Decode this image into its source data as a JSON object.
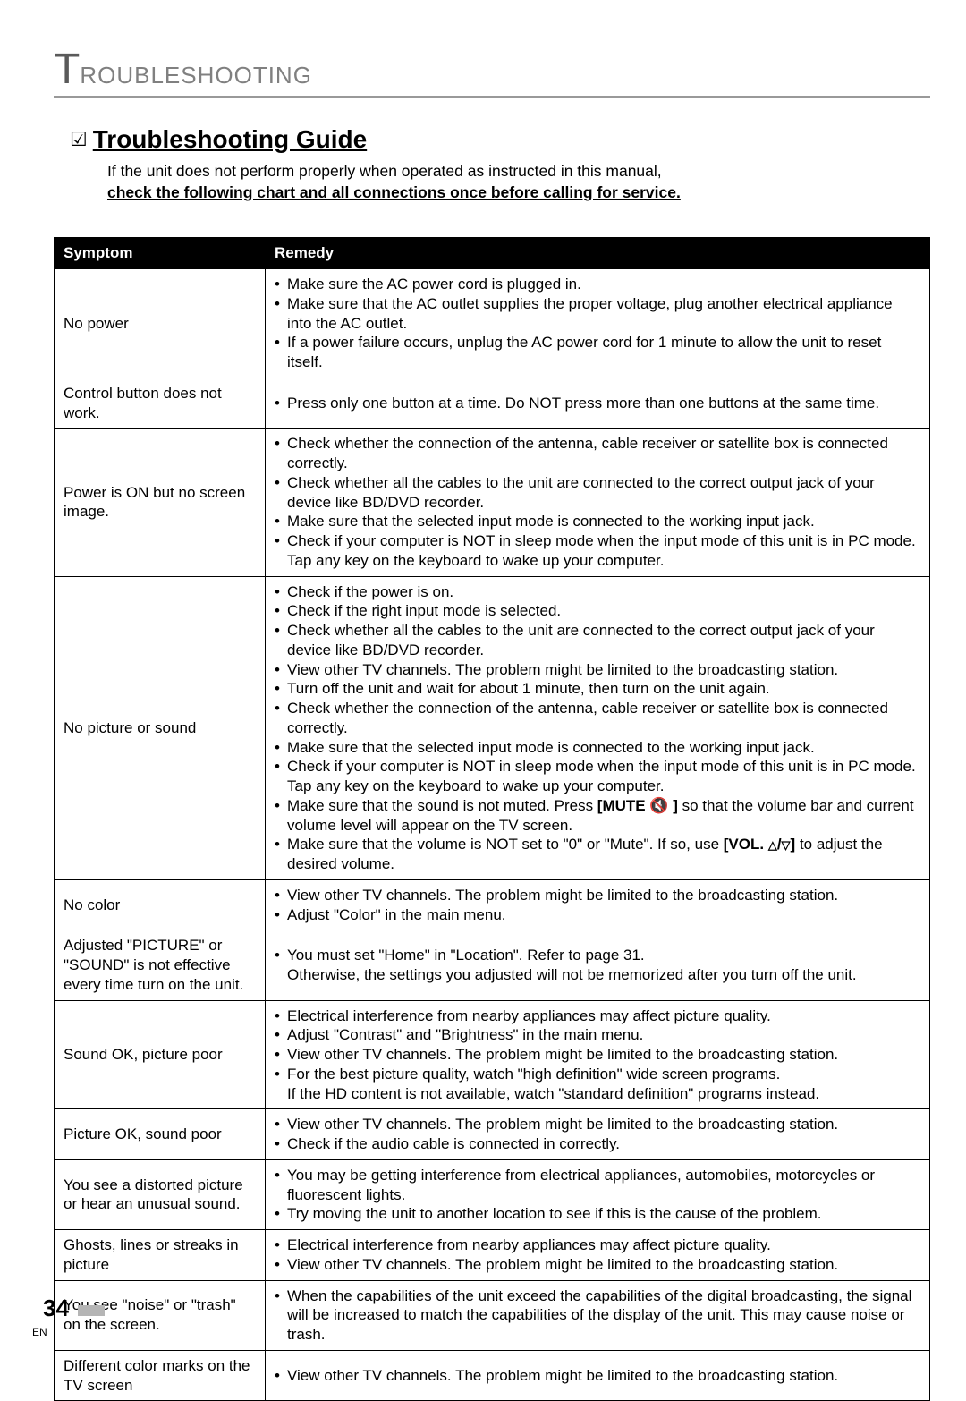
{
  "chapter": {
    "big_letter": "T",
    "rest": "ROUBLESHOOTING"
  },
  "section": {
    "icon": "☑",
    "title": "Troubleshooting Guide",
    "intro_line1": "If the unit does not perform properly when operated as instructed in this manual,",
    "intro_line2": "check the following chart and all connections once before calling for service."
  },
  "table": {
    "headers": {
      "symptom": "Symptom",
      "remedy": "Remedy"
    },
    "rows": [
      {
        "symptom": "No power",
        "remedy": [
          "Make sure the AC power cord is plugged in.",
          "Make sure that the AC outlet supplies the proper voltage, plug another electrical appliance into the AC outlet.",
          "If a power failure occurs, unplug the AC power cord for 1 minute to allow the unit to reset itself."
        ]
      },
      {
        "symptom": "Control button does not work.",
        "remedy": [
          "Press only one button at a time. Do NOT press more than one buttons at the same time."
        ]
      },
      {
        "symptom": "Power is ON but no screen image.",
        "remedy": [
          "Check whether the connection of the antenna, cable receiver or satellite box is connected correctly.",
          "Check whether all the cables to the unit are connected to the correct output jack of your device like BD/DVD recorder.",
          "Make sure that the selected input mode is connected to the working input jack.",
          "Check if your computer is NOT in sleep mode when the input mode of this unit is in PC mode. Tap any key on the keyboard to wake up your computer."
        ]
      },
      {
        "symptom": "No picture or sound",
        "remedy_special": true
      },
      {
        "symptom": "No color",
        "remedy": [
          "View other TV channels. The problem might be limited to the broadcasting station.",
          "Adjust \"Color\" in the main menu."
        ]
      },
      {
        "symptom": "Adjusted \"PICTURE\" or \"SOUND\" is not effective every time turn on the unit.",
        "remedy_special": "adjust_picture"
      },
      {
        "symptom": "Sound OK, picture poor",
        "remedy_special": "sound_ok"
      },
      {
        "symptom": "Picture OK, sound poor",
        "remedy": [
          "View other TV channels. The problem might be limited to the broadcasting station.",
          "Check if the audio cable is connected in correctly."
        ]
      },
      {
        "symptom": "You see a distorted picture or hear an unusual sound.",
        "remedy": [
          "You may be getting interference from electrical appliances, automobiles, motorcycles or fluorescent lights.",
          "Try moving the unit to another location to see if this is the cause of the problem."
        ]
      },
      {
        "symptom": "Ghosts, lines or streaks in picture",
        "remedy": [
          "Electrical interference from nearby appliances may affect picture quality.",
          "View other TV channels. The problem might be limited to the broadcasting station."
        ]
      },
      {
        "symptom": "You see \"noise\" or \"trash\" on the screen.",
        "remedy": [
          "When the capabilities of the unit exceed the capabilities of the digital broadcasting, the signal will be increased to match the capabilities of the display of the unit. This may cause noise or trash."
        ]
      },
      {
        "symptom": "Different color marks on the TV screen",
        "remedy": [
          "View other TV channels. The problem might be limited to the broadcasting station."
        ]
      }
    ],
    "special": {
      "no_picture_sound": {
        "items": [
          "Check if the power is on.",
          "Check if the right input mode is selected.",
          "Check whether all the cables to the unit are connected to the correct output jack of your device like BD/DVD recorder.",
          "View other TV channels. The problem might be limited to the broadcasting station.",
          "Turn off the unit and wait for about 1 minute, then turn on the unit again.",
          "Check whether the connection of the antenna, cable receiver or satellite box is connected correctly.",
          "Make sure that the selected input mode is connected to the working input jack.",
          "Check if your computer is NOT in sleep mode when the input mode of this unit is in PC mode. Tap any key on the keyboard to wake up your computer."
        ],
        "mute_prefix": "Make sure that the sound is not muted. Press ",
        "mute_bold": "[MUTE 🔇 ]",
        "mute_suffix": " so that the volume bar and current volume level will appear on the TV screen.",
        "vol_prefix": "Make sure that the volume is NOT set to \"0\" or \"Mute\". If so, use ",
        "vol_bold_open": "[VOL. ",
        "vol_bold_close": "]",
        "vol_suffix": " to adjust the desired volume."
      },
      "adjust_picture": {
        "line1_prefix": "You must set \"Home\" in \"Location\". Refer to page 31.",
        "line2": "Otherwise, the settings you adjusted will not be memorized after you turn off the unit."
      },
      "sound_ok": {
        "items": [
          "Electrical interference from nearby appliances may affect picture quality.",
          "Adjust \"Contrast\" and \"Brightness\" in the main menu.",
          "View other TV channels. The problem might be limited to the broadcasting station."
        ],
        "last_line1": "For the best picture quality, watch \"high definition\" wide screen programs.",
        "last_line2": "If the HD content is not available, watch \"standard definition\" programs instead."
      }
    }
  },
  "footer": {
    "page": "34",
    "lang": "EN"
  }
}
